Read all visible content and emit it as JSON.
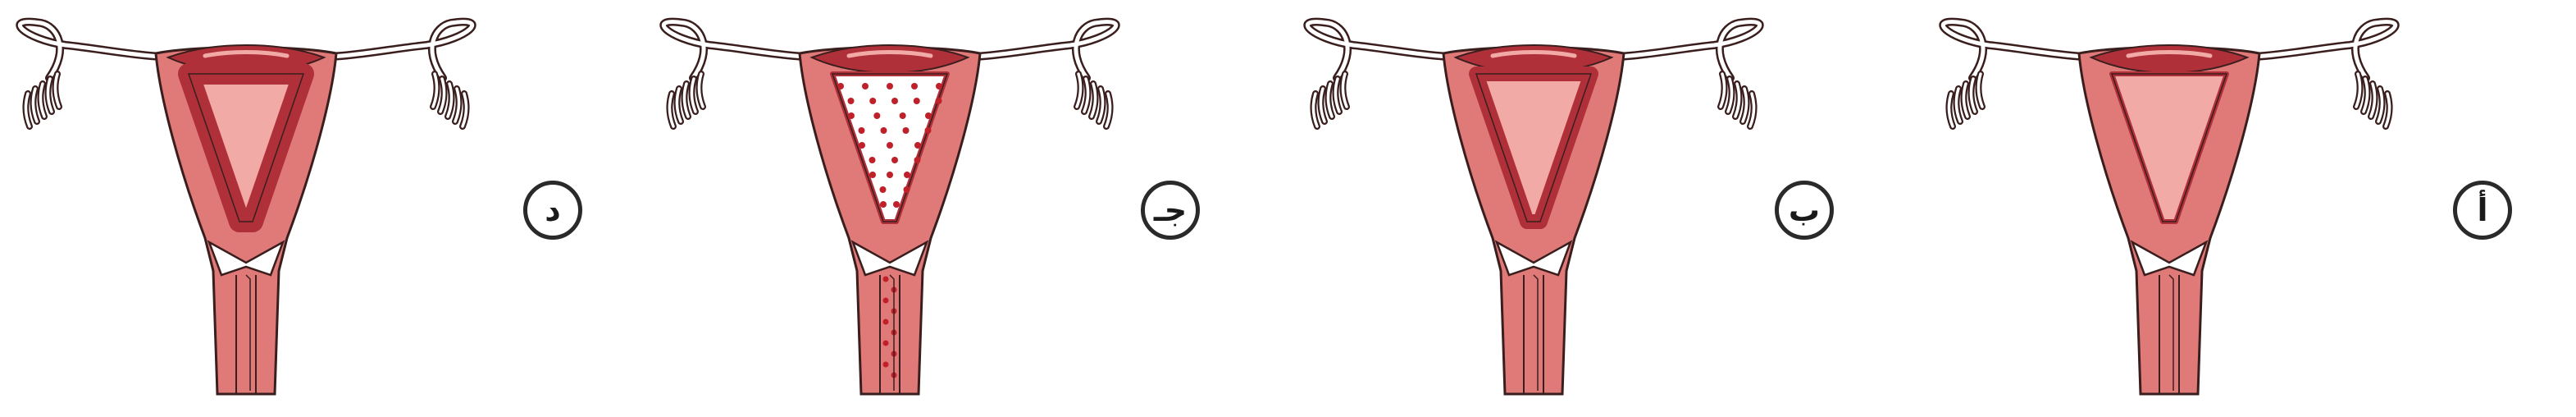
{
  "figure": {
    "panels": [
      {
        "label": "د",
        "state": "endometrium-thick"
      },
      {
        "label": "جـ",
        "state": "menstruation"
      },
      {
        "label": "ب",
        "state": "endometrium-thickening"
      },
      {
        "label": "أ",
        "state": "endometrium-thin"
      }
    ]
  },
  "colors": {
    "outline": "#3a1e1e",
    "tissue": "#e07a78",
    "tissue_light": "#f2aaa6",
    "endometrium": "#b0303a",
    "blood": "#c0202a",
    "background": "#ffffff"
  }
}
